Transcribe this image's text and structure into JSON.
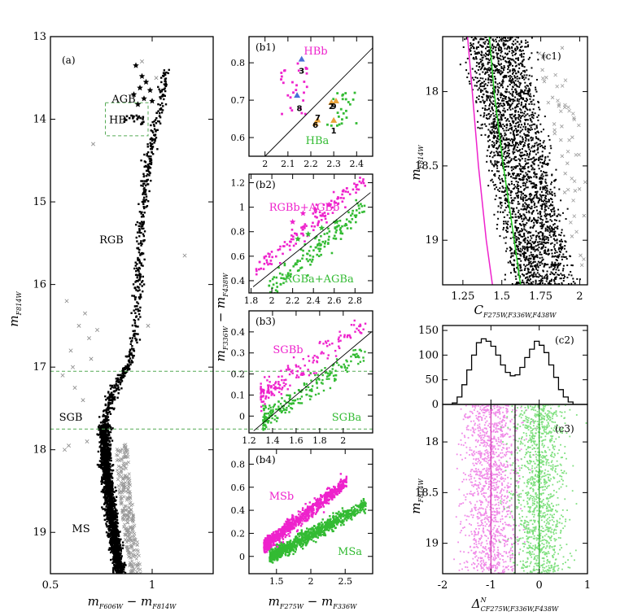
{
  "chart_data": [
    {
      "id": "a",
      "type": "scatter",
      "panel_label": "(a)",
      "xlabel": {
        "main": "m",
        "sub1": "F606W",
        "mid": " − m",
        "sub2": "F814W"
      },
      "ylabel": {
        "main": "m",
        "sub": "F814W"
      },
      "xlim": [
        0.5,
        1.3
      ],
      "ylim": [
        19.5,
        13.0
      ],
      "xticks": [
        "0.5",
        "1"
      ],
      "yticks": [
        "13",
        "14",
        "15",
        "16",
        "17",
        "18",
        "19"
      ],
      "sequence_labels": [
        {
          "text": "AGB",
          "x": 0.86,
          "y": 13.75
        },
        {
          "text": "HB",
          "x": 0.83,
          "y": 14.0
        },
        {
          "text": "RGB",
          "x": 0.8,
          "y": 15.45
        },
        {
          "text": "SGB",
          "x": 0.6,
          "y": 17.6
        },
        {
          "text": "MS",
          "x": 0.65,
          "y": 18.95
        }
      ],
      "hb_box": {
        "x": [
          0.77,
          0.98
        ],
        "y": [
          13.8,
          14.2
        ]
      },
      "cut_lines_y": [
        17.05,
        17.75
      ],
      "star_marker_points": [
        [
          0.92,
          13.35
        ],
        [
          0.95,
          13.48
        ],
        [
          0.97,
          13.55
        ],
        [
          0.94,
          13.62
        ],
        [
          0.99,
          13.65
        ],
        [
          0.91,
          13.7
        ],
        [
          0.96,
          13.75
        ],
        [
          1.0,
          13.78
        ],
        [
          0.93,
          13.82
        ]
      ],
      "outlier_points": [
        [
          0.56,
          17.1
        ],
        [
          0.6,
          16.8
        ],
        [
          0.64,
          16.5
        ],
        [
          0.58,
          16.2
        ],
        [
          0.67,
          16.35
        ],
        [
          0.7,
          16.9
        ],
        [
          0.62,
          17.25
        ],
        [
          0.69,
          16.65
        ],
        [
          0.73,
          16.55
        ],
        [
          0.61,
          17.0
        ],
        [
          0.66,
          17.4
        ],
        [
          0.59,
          17.95
        ],
        [
          0.57,
          18.0
        ],
        [
          0.68,
          17.9
        ],
        [
          0.95,
          13.3
        ],
        [
          1.02,
          13.5
        ],
        [
          1.16,
          15.65
        ],
        [
          0.98,
          16.5
        ],
        [
          0.71,
          14.3
        ]
      ]
    },
    {
      "id": "b1",
      "type": "scatter",
      "panel_label": "(b1)",
      "xlim": [
        1.93,
        2.47
      ],
      "ylim": [
        0.55,
        0.87
      ],
      "xticks": [
        "2",
        "2.1",
        "2.2",
        "2.3",
        "2.4"
      ],
      "yticks": [
        "0.6",
        "0.7",
        "0.8"
      ],
      "labels": [
        {
          "text": "HBb",
          "color": "#ee22cc"
        },
        {
          "text": "HBa",
          "color": "#33bb33"
        }
      ],
      "numbers": [
        "3",
        "8",
        "7",
        "6",
        "2",
        "9",
        "1"
      ],
      "number_positions": [
        [
          2.16,
          0.78
        ],
        [
          2.15,
          0.68
        ],
        [
          2.23,
          0.655
        ],
        [
          2.22,
          0.635
        ],
        [
          2.29,
          0.685
        ],
        [
          2.3,
          0.685
        ],
        [
          2.3,
          0.62
        ]
      ],
      "blue_triangles": [
        [
          2.16,
          0.81
        ],
        [
          2.14,
          0.713
        ]
      ],
      "orange_triangles": [
        [
          2.31,
          0.698
        ],
        [
          2.29,
          0.694
        ],
        [
          2.23,
          0.647
        ],
        [
          2.22,
          0.638
        ],
        [
          2.3,
          0.646
        ]
      ],
      "dividing_line": [
        [
          2.0,
          0.55
        ],
        [
          2.47,
          0.84
        ]
      ]
    },
    {
      "id": "b2",
      "type": "scatter",
      "panel_label": "(b2)",
      "xlim": [
        1.78,
        2.97
      ],
      "ylim": [
        0.3,
        1.27
      ],
      "xticks": [
        "1.8",
        "2",
        "2.2",
        "2.4",
        "2.6",
        "2.8"
      ],
      "yticks": [
        "0.4",
        "0.6",
        "0.8",
        "1",
        "1.2"
      ],
      "labels": [
        {
          "text": "RGBb+AGBb",
          "color": "#ee22cc"
        },
        {
          "text": "RGBa+AGBa",
          "color": "#33bb33"
        }
      ],
      "dividing_line": [
        [
          1.82,
          0.35
        ],
        [
          2.95,
          1.12
        ]
      ]
    },
    {
      "id": "b3",
      "type": "scatter",
      "panel_label": "(b3)",
      "xlim": [
        1.2,
        2.25
      ],
      "ylim": [
        -0.08,
        0.5
      ],
      "xticks": [
        "1.2",
        "1.4",
        "1.6",
        "1.8",
        "2"
      ],
      "yticks": [
        "0",
        "0.1",
        "0.2",
        "0.3",
        "0.4"
      ],
      "labels": [
        {
          "text": "SGBb",
          "color": "#ee22cc"
        },
        {
          "text": "SGBa",
          "color": "#33bb33"
        }
      ],
      "dividing_line": [
        [
          1.24,
          -0.07
        ],
        [
          2.24,
          0.4
        ]
      ]
    },
    {
      "id": "b4",
      "type": "scatter",
      "panel_label": "(b4)",
      "xlim": [
        1.1,
        2.9
      ],
      "ylim": [
        -0.15,
        0.93
      ],
      "xticks": [
        "1.5",
        "2",
        "2.5"
      ],
      "yticks": [
        "0",
        "0.2",
        "0.4",
        "0.6",
        "0.8"
      ],
      "labels": [
        {
          "text": "MSb",
          "color": "#ee22cc"
        },
        {
          "text": "MSa",
          "color": "#33bb33"
        }
      ]
    },
    {
      "id": "b_common",
      "type": "axis-labels",
      "xlabel": {
        "main": "m",
        "sub1": "F275W",
        "mid": " − m",
        "sub2": "F336W"
      },
      "ylabel": {
        "main": "m",
        "sub1": "F336W",
        "mid": " − m",
        "sub2": "F438W"
      }
    },
    {
      "id": "c1",
      "type": "scatter",
      "panel_label": "(c1)",
      "xlim": [
        1.12,
        2.05
      ],
      "ylim": [
        19.3,
        17.63
      ],
      "xticks": [
        "1.25",
        "1.5",
        "1.75",
        "2"
      ],
      "yticks": [
        "18",
        "18.5",
        "19"
      ],
      "xlabel": {
        "main": "C",
        "sub": "F275W,F336W,F438W"
      },
      "ylabel": {
        "main": "m",
        "sub": "F814W"
      },
      "fiducial_lines": [
        {
          "color": "#ee22cc",
          "points": [
            [
              1.28,
              17.63
            ],
            [
              1.31,
              18.0
            ],
            [
              1.35,
              18.5
            ],
            [
              1.4,
              19.0
            ],
            [
              1.44,
              19.3
            ]
          ]
        },
        {
          "color": "#22cc22",
          "points": [
            [
              1.42,
              17.63
            ],
            [
              1.45,
              18.0
            ],
            [
              1.51,
              18.5
            ],
            [
              1.58,
              19.0
            ],
            [
              1.62,
              19.3
            ]
          ]
        }
      ]
    },
    {
      "id": "c2",
      "type": "histogram",
      "panel_label": "(c2)",
      "xlim": [
        -2,
        1
      ],
      "ylim": [
        0,
        160
      ],
      "yticks": [
        "0",
        "50",
        "100",
        "150"
      ],
      "bin_width": 0.1,
      "bin_start": -1.8,
      "counts": [
        3,
        15,
        40,
        70,
        100,
        125,
        133,
        128,
        118,
        100,
        80,
        65,
        58,
        60,
        75,
        95,
        112,
        128,
        120,
        105,
        80,
        55,
        30,
        15,
        5
      ]
    },
    {
      "id": "c3",
      "type": "scatter",
      "panel_label": "(c3)",
      "xlim": [
        -2,
        1
      ],
      "ylim": [
        19.3,
        17.63
      ],
      "xticks": [
        "-2",
        "-1",
        "0",
        "1"
      ],
      "yticks": [
        "18",
        "18.5",
        "19"
      ],
      "xlabel": {
        "main": "Δ",
        "sup": "N",
        "sub": "CF275W,F336W,F438W"
      },
      "ylabel": {
        "main": "m",
        "sub": "F814W"
      },
      "vertical_lines": [
        {
          "x": -1.0,
          "color": "#cc22aa"
        },
        {
          "x": -0.5,
          "color": "#000000"
        },
        {
          "x": 0.0,
          "color": "#22aa22"
        }
      ]
    }
  ],
  "colors": {
    "pop_b": "#ee22cc",
    "pop_a": "#33bb33",
    "pop_b_light": "#f08ae8",
    "pop_a_light": "#7fe07f",
    "guide": "#55aa55",
    "marker_blue": "#4a6fd8",
    "marker_orange": "#e8a23a",
    "grey": "#999999"
  }
}
